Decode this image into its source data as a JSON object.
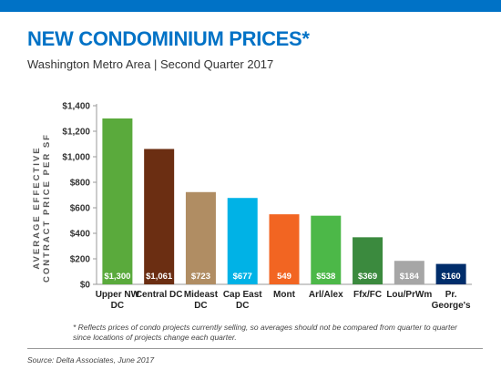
{
  "header": {
    "accent_color": "#0072c6"
  },
  "footer": {
    "note": "* Reflects prices of condo projects currently selling, so averages should not be compared from quarter to quarter since locations of projects change each quarter.",
    "source": "Source: Delta Associates, June 2017"
  },
  "chart_data": {
    "type": "bar",
    "title": "NEW CONDOMINIUM PRICES*",
    "subtitle": "Washington Metro Area  |  Second Quarter 2017",
    "ylabel": "AVERAGE EFFECTIVE CONTRACT PRICE PER SF",
    "xlabel": "",
    "ylim": [
      0,
      1400
    ],
    "yticks": [
      0,
      200,
      400,
      600,
      800,
      1000,
      1200,
      1400
    ],
    "ytick_labels": [
      "$0",
      "$200",
      "$400",
      "$600",
      "$800",
      "$1,000",
      "$1,200",
      "$1,400"
    ],
    "grid": false,
    "categories": [
      "Upper NW DC",
      "Central DC",
      "Mideast DC",
      "Cap East DC",
      "Mont",
      "Arl/Alex",
      "Ffx/FC",
      "Lou/PrWm",
      "Pr. George's"
    ],
    "category_lines": [
      [
        "Upper NW",
        "DC"
      ],
      [
        "Central DC"
      ],
      [
        "Mideast",
        "DC"
      ],
      [
        "Cap East",
        "DC"
      ],
      [
        "Mont"
      ],
      [
        "Arl/Alex"
      ],
      [
        "Ffx/FC"
      ],
      [
        "Lou/PrWm"
      ],
      [
        "Pr.",
        "George's"
      ]
    ],
    "values": [
      1300,
      1061,
      723,
      677,
      549,
      538,
      369,
      184,
      160
    ],
    "data_labels": [
      "$1,300",
      "$1,061",
      "$723",
      "$677",
      "549",
      "$538",
      "$369",
      "$184",
      "$160"
    ],
    "colors": [
      "#5aaa3c",
      "#6b2e12",
      "#b08d63",
      "#00b2e6",
      "#f26522",
      "#4cb848",
      "#3b8a3e",
      "#a6a6a6",
      "#002d6b"
    ]
  }
}
